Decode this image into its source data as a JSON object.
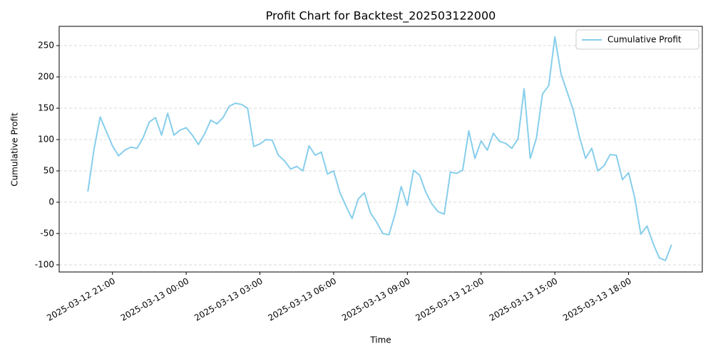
{
  "chart_data": {
    "type": "line",
    "title": "Profit Chart for Backtest_202503122000",
    "x_label": "Time",
    "y_label": "Cumulative Profit",
    "x": [
      "2025-03-12 20:00",
      "2025-03-12 20:15",
      "2025-03-12 20:30",
      "2025-03-12 20:45",
      "2025-03-12 21:00",
      "2025-03-12 21:15",
      "2025-03-12 21:30",
      "2025-03-12 21:45",
      "2025-03-12 22:00",
      "2025-03-12 22:15",
      "2025-03-12 22:30",
      "2025-03-12 22:45",
      "2025-03-12 23:00",
      "2025-03-12 23:15",
      "2025-03-12 23:30",
      "2025-03-12 23:45",
      "2025-03-13 00:00",
      "2025-03-13 00:15",
      "2025-03-13 00:30",
      "2025-03-13 00:45",
      "2025-03-13 01:00",
      "2025-03-13 01:15",
      "2025-03-13 01:30",
      "2025-03-13 01:45",
      "2025-03-13 02:00",
      "2025-03-13 02:15",
      "2025-03-13 02:30",
      "2025-03-13 02:45",
      "2025-03-13 03:00",
      "2025-03-13 03:15",
      "2025-03-13 03:30",
      "2025-03-13 03:45",
      "2025-03-13 04:00",
      "2025-03-13 04:15",
      "2025-03-13 04:30",
      "2025-03-13 04:45",
      "2025-03-13 05:00",
      "2025-03-13 05:15",
      "2025-03-13 05:30",
      "2025-03-13 05:45",
      "2025-03-13 06:00",
      "2025-03-13 06:15",
      "2025-03-13 06:30",
      "2025-03-13 06:45",
      "2025-03-13 07:00",
      "2025-03-13 07:15",
      "2025-03-13 07:30",
      "2025-03-13 07:45",
      "2025-03-13 08:00",
      "2025-03-13 08:15",
      "2025-03-13 08:30",
      "2025-03-13 08:45",
      "2025-03-13 09:00",
      "2025-03-13 09:15",
      "2025-03-13 09:30",
      "2025-03-13 09:45",
      "2025-03-13 10:00",
      "2025-03-13 10:15",
      "2025-03-13 10:30",
      "2025-03-13 10:45",
      "2025-03-13 11:00",
      "2025-03-13 11:15",
      "2025-03-13 11:30",
      "2025-03-13 11:45",
      "2025-03-13 12:00",
      "2025-03-13 12:15",
      "2025-03-13 12:30",
      "2025-03-13 12:45",
      "2025-03-13 13:00",
      "2025-03-13 13:15",
      "2025-03-13 13:30",
      "2025-03-13 13:45",
      "2025-03-13 14:00",
      "2025-03-13 14:15",
      "2025-03-13 14:30",
      "2025-03-13 14:45",
      "2025-03-13 15:00",
      "2025-03-13 15:15",
      "2025-03-13 15:30",
      "2025-03-13 15:45",
      "2025-03-13 16:00",
      "2025-03-13 16:15",
      "2025-03-13 16:30",
      "2025-03-13 16:45",
      "2025-03-13 17:00",
      "2025-03-13 17:15",
      "2025-03-13 17:30",
      "2025-03-13 17:45",
      "2025-03-13 18:00",
      "2025-03-13 18:15",
      "2025-03-13 18:30",
      "2025-03-13 18:45",
      "2025-03-13 19:00",
      "2025-03-13 19:15",
      "2025-03-13 19:30",
      "2025-03-13 19:45"
    ],
    "series": [
      {
        "name": "Cumulative Profit",
        "color": "#87ceeb",
        "values": [
          17,
          84,
          136,
          113,
          90,
          74,
          83,
          88,
          86,
          103,
          128,
          135,
          107,
          142,
          107,
          115,
          119,
          107,
          92,
          109,
          131,
          125,
          135,
          153,
          158,
          156,
          150,
          89,
          93,
          100,
          99,
          75,
          66,
          53,
          57,
          50,
          90,
          75,
          80,
          45,
          50,
          16,
          -6,
          -26,
          5,
          15,
          -17,
          -32,
          -50,
          -52,
          -19,
          25,
          -5,
          51,
          43,
          16,
          -3,
          -15,
          -19,
          48,
          46,
          51,
          114,
          70,
          98,
          83,
          110,
          97,
          94,
          86,
          101,
          181,
          70,
          102,
          173,
          186,
          264,
          205,
          176,
          147,
          105,
          70,
          86,
          50,
          58,
          76,
          75,
          36,
          47,
          7,
          -51,
          -38,
          -66,
          -89,
          -93,
          -68
        ]
      }
    ],
    "xlim": [
      "2025-03-12 18:50",
      "2025-03-13 21:00"
    ],
    "xticks": [
      "2025-03-12 21:00",
      "2025-03-13 00:00",
      "2025-03-13 03:00",
      "2025-03-13 06:00",
      "2025-03-13 09:00",
      "2025-03-13 12:00",
      "2025-03-13 15:00",
      "2025-03-13 18:00"
    ],
    "ylim": [
      -111.4,
      280.7
    ],
    "yticks": [
      -100,
      -50,
      0,
      50,
      100,
      150,
      200,
      250
    ],
    "grid": true,
    "legend": "upper right"
  }
}
